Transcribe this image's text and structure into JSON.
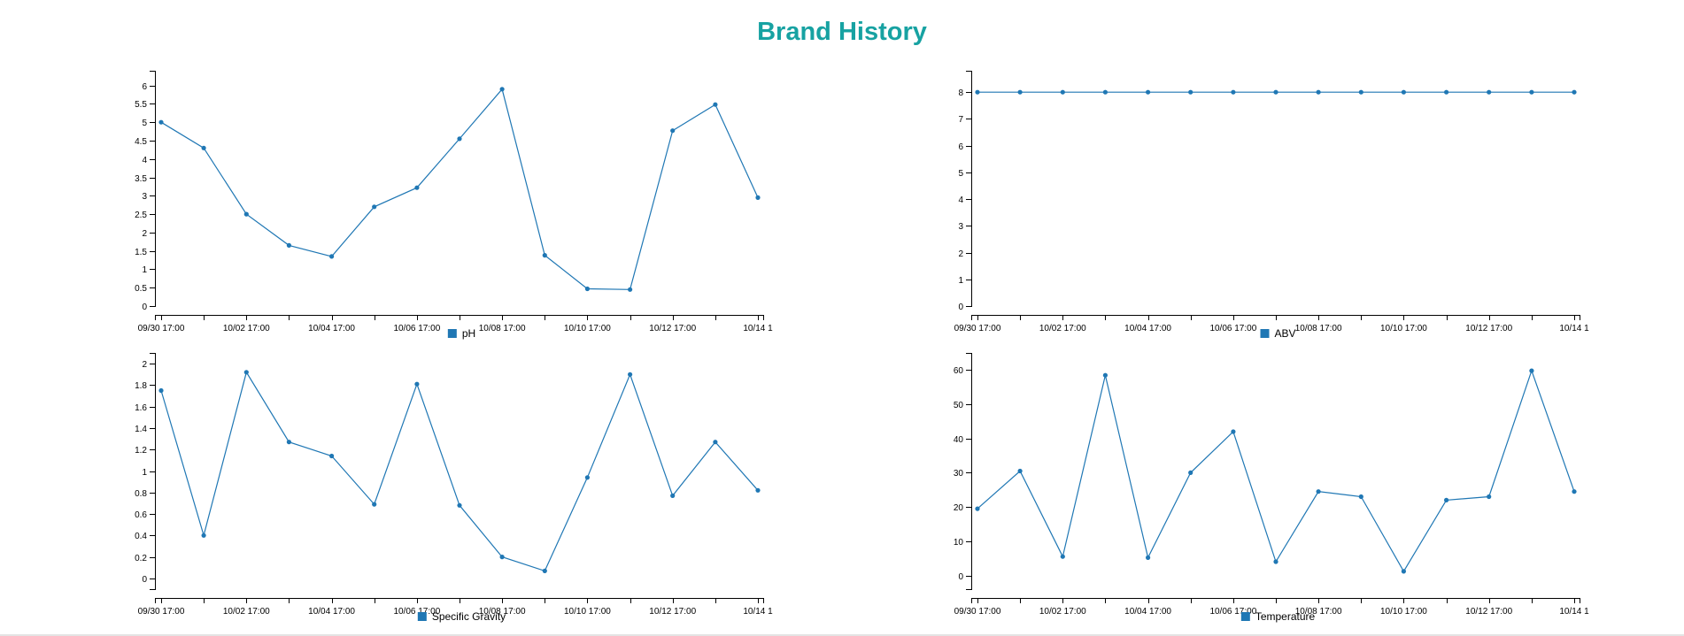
{
  "page": {
    "title": "Brand History",
    "title_color": "#17a2a2",
    "series_color": "#1f77b4"
  },
  "chart_data": [
    {
      "type": "line",
      "title": "",
      "xlabel": "",
      "ylabel": "",
      "legend": "bottom",
      "grid": false,
      "x_tick_labels": [
        "09/30 17:00",
        "10/02 17:00",
        "10/04 17:00",
        "10/06 17:00",
        "10/08 17:00",
        "10/10 17:00",
        "10/12 17:00",
        "10/14 1"
      ],
      "y_ticks": [
        0,
        0.5,
        1,
        1.5,
        2,
        2.5,
        3,
        3.5,
        4,
        4.5,
        5,
        5.5,
        6
      ],
      "y_tick_labels": [
        "0",
        "0.5",
        "1",
        "1.5",
        "2",
        "2.5",
        "3",
        "3.5",
        "4",
        "4.5",
        "5",
        "5.5",
        "6"
      ],
      "ylim": [
        0,
        6.4
      ],
      "series": [
        {
          "name": "pH",
          "values": [
            5.0,
            4.3,
            2.5,
            1.65,
            1.35,
            2.7,
            3.22,
            4.55,
            5.9,
            1.38,
            0.47,
            0.45,
            4.77,
            5.48,
            2.95
          ]
        }
      ]
    },
    {
      "type": "line",
      "title": "",
      "xlabel": "",
      "ylabel": "",
      "legend": "bottom",
      "grid": false,
      "x_tick_labels": [
        "09/30 17:00",
        "10/02 17:00",
        "10/04 17:00",
        "10/06 17:00",
        "10/08 17:00",
        "10/10 17:00",
        "10/12 17:00",
        "10/14 1"
      ],
      "y_ticks": [
        0,
        1,
        2,
        3,
        4,
        5,
        6,
        7,
        8
      ],
      "y_tick_labels": [
        "0",
        "1",
        "2",
        "3",
        "4",
        "5",
        "6",
        "7",
        "8"
      ],
      "ylim": [
        0,
        8.8
      ],
      "series": [
        {
          "name": "ABV",
          "values": [
            8,
            8,
            8,
            8,
            8,
            8,
            8,
            8,
            8,
            8,
            8,
            8,
            8,
            8,
            8
          ]
        }
      ]
    },
    {
      "type": "line",
      "title": "",
      "xlabel": "",
      "ylabel": "",
      "legend": "bottom",
      "grid": false,
      "x_tick_labels": [
        "09/30 17:00",
        "10/02 17:00",
        "10/04 17:00",
        "10/06 17:00",
        "10/08 17:00",
        "10/10 17:00",
        "10/12 17:00",
        "10/14 1"
      ],
      "y_ticks": [
        0,
        0.2,
        0.4,
        0.6,
        0.8,
        1,
        1.2,
        1.4,
        1.6,
        1.8,
        2
      ],
      "y_tick_labels": [
        "0",
        "0.2",
        "0.4",
        "0.6",
        "0.8",
        "1",
        "1.2",
        "1.4",
        "1.6",
        "1.8",
        "2"
      ],
      "ylim": [
        -0.1,
        2.1
      ],
      "series": [
        {
          "name": "Specific Gravity",
          "values": [
            1.75,
            0.4,
            1.92,
            1.27,
            1.14,
            0.69,
            1.81,
            0.68,
            0.2,
            0.07,
            0.94,
            1.9,
            0.77,
            1.27,
            0.82
          ]
        }
      ]
    },
    {
      "type": "line",
      "title": "",
      "xlabel": "",
      "ylabel": "",
      "legend": "bottom",
      "grid": false,
      "x_tick_labels": [
        "09/30 17:00",
        "10/02 17:00",
        "10/04 17:00",
        "10/06 17:00",
        "10/08 17:00",
        "10/10 17:00",
        "10/12 17:00",
        "10/14 1"
      ],
      "y_ticks": [
        0,
        10,
        20,
        30,
        40,
        50,
        60
      ],
      "y_tick_labels": [
        "0",
        "10",
        "20",
        "30",
        "40",
        "50",
        "60"
      ],
      "ylim": [
        -4,
        65
      ],
      "series": [
        {
          "name": "Temperature",
          "values": [
            19.5,
            30.5,
            5.5,
            58.5,
            5.2,
            30.0,
            42.0,
            4.0,
            24.5,
            23.0,
            1.2,
            22.0,
            23.0,
            59.8,
            24.5
          ]
        }
      ]
    }
  ]
}
